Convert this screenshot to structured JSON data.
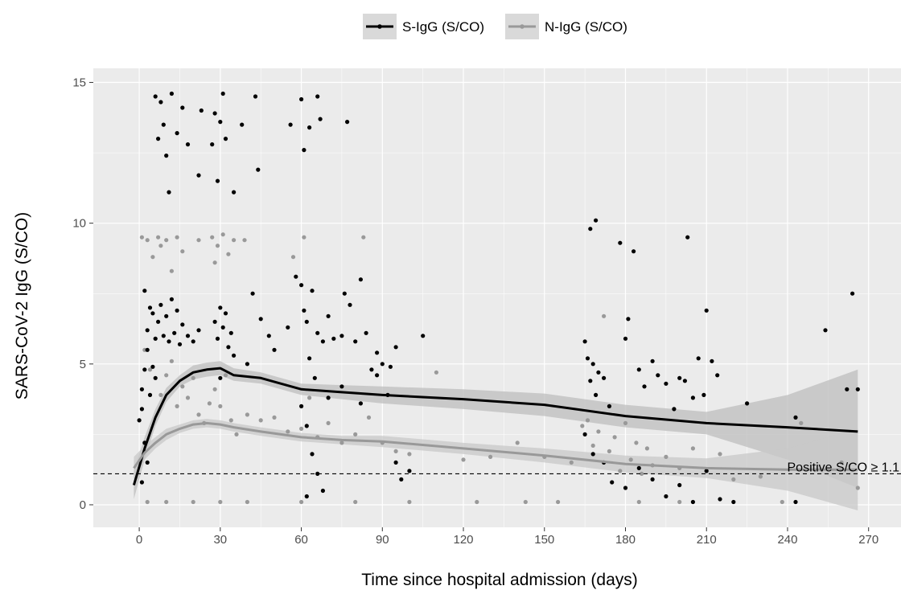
{
  "chart_data": {
    "type": "scatter",
    "title": "",
    "xlabel": "Time since hospital admission (days)",
    "ylabel": "SARS-CoV-2 IgG (S/CO)",
    "xlim": [
      -17,
      282
    ],
    "ylim": [
      -0.8,
      15.5
    ],
    "x_ticks": [
      0,
      30,
      60,
      90,
      120,
      150,
      180,
      210,
      240,
      270
    ],
    "y_ticks": [
      0,
      5,
      10,
      15
    ],
    "grid": true,
    "legend_position": "top",
    "series": [
      {
        "name": "S-IgG (S/CO)",
        "color": "#000000",
        "band_color": "#bdbdbd",
        "smooth": {
          "x": [
            -2,
            2,
            6,
            10,
            15,
            20,
            25,
            30,
            35,
            45,
            60,
            75,
            90,
            120,
            150,
            180,
            210,
            240,
            266
          ],
          "y": [
            0.7,
            2.0,
            3.1,
            3.9,
            4.4,
            4.7,
            4.8,
            4.85,
            4.6,
            4.5,
            4.1,
            4.0,
            3.9,
            3.75,
            3.55,
            3.15,
            2.9,
            2.75,
            2.6
          ],
          "lower": [
            0.2,
            1.6,
            2.8,
            3.65,
            4.2,
            4.45,
            4.55,
            4.6,
            4.4,
            4.3,
            3.9,
            3.75,
            3.6,
            3.4,
            3.15,
            2.75,
            2.5,
            1.6,
            0.6
          ],
          "upper": [
            1.2,
            2.4,
            3.4,
            4.15,
            4.6,
            4.95,
            5.05,
            5.1,
            4.85,
            4.7,
            4.3,
            4.25,
            4.2,
            4.1,
            3.95,
            3.55,
            3.3,
            3.9,
            4.8
          ]
        },
        "points": [
          [
            3,
            6.2
          ],
          [
            4,
            7.0
          ],
          [
            5,
            6.8
          ],
          [
            6,
            5.9
          ],
          [
            7,
            6.5
          ],
          [
            8,
            7.1
          ],
          [
            9,
            6.0
          ],
          [
            10,
            6.7
          ],
          [
            11,
            5.8
          ],
          [
            12,
            7.3
          ],
          [
            13,
            6.1
          ],
          [
            14,
            6.9
          ],
          [
            15,
            5.7
          ],
          [
            16,
            6.4
          ],
          [
            18,
            6.0
          ],
          [
            20,
            5.8
          ],
          [
            22,
            6.2
          ],
          [
            2,
            7.6
          ],
          [
            3,
            5.5
          ],
          [
            5,
            4.9
          ],
          [
            1,
            4.1
          ],
          [
            2,
            4.8
          ],
          [
            4,
            3.9
          ],
          [
            6,
            4.5
          ],
          [
            0,
            3.0
          ],
          [
            1,
            3.4
          ],
          [
            2,
            2.2
          ],
          [
            3,
            1.5
          ],
          [
            1,
            0.8
          ],
          [
            6,
            14.5
          ],
          [
            7,
            13.0
          ],
          [
            8,
            14.3
          ],
          [
            9,
            13.5
          ],
          [
            10,
            12.4
          ],
          [
            11,
            11.1
          ],
          [
            12,
            14.6
          ],
          [
            14,
            13.2
          ],
          [
            16,
            14.1
          ],
          [
            18,
            12.8
          ],
          [
            22,
            11.7
          ],
          [
            23,
            14.0
          ],
          [
            27,
            12.8
          ],
          [
            28,
            13.9
          ],
          [
            29,
            11.5
          ],
          [
            30,
            13.6
          ],
          [
            31,
            14.6
          ],
          [
            32,
            13.0
          ],
          [
            35,
            11.1
          ],
          [
            38,
            13.5
          ],
          [
            43,
            14.5
          ],
          [
            44,
            11.9
          ],
          [
            56,
            13.5
          ],
          [
            60,
            14.4
          ],
          [
            61,
            12.6
          ],
          [
            63,
            13.4
          ],
          [
            66,
            14.5
          ],
          [
            67,
            13.7
          ],
          [
            77,
            13.6
          ],
          [
            28,
            6.5
          ],
          [
            29,
            5.9
          ],
          [
            30,
            7.0
          ],
          [
            31,
            6.3
          ],
          [
            32,
            6.8
          ],
          [
            33,
            5.6
          ],
          [
            34,
            6.1
          ],
          [
            30,
            4.5
          ],
          [
            35,
            5.3
          ],
          [
            40,
            5.0
          ],
          [
            42,
            7.5
          ],
          [
            45,
            6.6
          ],
          [
            48,
            6.0
          ],
          [
            50,
            5.5
          ],
          [
            55,
            6.3
          ],
          [
            58,
            8.1
          ],
          [
            60,
            7.8
          ],
          [
            61,
            6.9
          ],
          [
            62,
            6.5
          ],
          [
            63,
            5.2
          ],
          [
            64,
            7.6
          ],
          [
            65,
            4.5
          ],
          [
            66,
            6.1
          ],
          [
            68,
            5.8
          ],
          [
            70,
            6.7
          ],
          [
            72,
            5.9
          ],
          [
            75,
            6.0
          ],
          [
            76,
            7.5
          ],
          [
            78,
            7.1
          ],
          [
            80,
            5.8
          ],
          [
            82,
            8.0
          ],
          [
            84,
            6.1
          ],
          [
            86,
            4.8
          ],
          [
            88,
            5.4
          ],
          [
            90,
            5.0
          ],
          [
            93,
            4.9
          ],
          [
            95,
            5.6
          ],
          [
            105,
            6.0
          ],
          [
            60,
            3.5
          ],
          [
            62,
            2.8
          ],
          [
            64,
            1.8
          ],
          [
            66,
            1.1
          ],
          [
            68,
            0.5
          ],
          [
            62,
            0.3
          ],
          [
            70,
            3.8
          ],
          [
            75,
            4.2
          ],
          [
            82,
            3.6
          ],
          [
            88,
            4.6
          ],
          [
            92,
            3.9
          ],
          [
            95,
            1.5
          ],
          [
            97,
            0.9
          ],
          [
            100,
            1.2
          ],
          [
            165,
            5.8
          ],
          [
            166,
            5.2
          ],
          [
            167,
            4.4
          ],
          [
            168,
            5.0
          ],
          [
            169,
            3.9
          ],
          [
            170,
            4.7
          ],
          [
            167,
            9.8
          ],
          [
            169,
            10.1
          ],
          [
            172,
            4.5
          ],
          [
            174,
            3.5
          ],
          [
            178,
            9.3
          ],
          [
            180,
            5.9
          ],
          [
            181,
            6.6
          ],
          [
            183,
            9.0
          ],
          [
            185,
            4.8
          ],
          [
            187,
            4.2
          ],
          [
            190,
            5.1
          ],
          [
            192,
            4.6
          ],
          [
            195,
            4.3
          ],
          [
            198,
            3.4
          ],
          [
            200,
            4.5
          ],
          [
            202,
            4.4
          ],
          [
            203,
            9.5
          ],
          [
            205,
            3.8
          ],
          [
            207,
            5.2
          ],
          [
            209,
            3.9
          ],
          [
            210,
            6.9
          ],
          [
            212,
            5.1
          ],
          [
            214,
            4.6
          ],
          [
            165,
            2.5
          ],
          [
            168,
            1.8
          ],
          [
            172,
            1.5
          ],
          [
            175,
            0.8
          ],
          [
            180,
            0.6
          ],
          [
            185,
            1.3
          ],
          [
            190,
            0.9
          ],
          [
            195,
            0.3
          ],
          [
            200,
            0.7
          ],
          [
            205,
            0.1
          ],
          [
            210,
            1.2
          ],
          [
            215,
            0.2
          ],
          [
            220,
            0.1
          ],
          [
            225,
            3.6
          ],
          [
            243,
            3.1
          ],
          [
            243,
            0.1
          ],
          [
            254,
            6.2
          ],
          [
            262,
            4.1
          ],
          [
            264,
            7.5
          ],
          [
            266,
            4.1
          ]
        ]
      },
      {
        "name": "N-IgG (S/CO)",
        "color": "#999999",
        "band_color": "#c8c8c8",
        "smooth": {
          "x": [
            -2,
            2,
            6,
            10,
            15,
            20,
            25,
            30,
            35,
            45,
            60,
            75,
            90,
            120,
            150,
            180,
            210,
            240,
            266
          ],
          "y": [
            1.3,
            1.85,
            2.2,
            2.5,
            2.7,
            2.85,
            2.9,
            2.85,
            2.75,
            2.6,
            2.4,
            2.3,
            2.25,
            2.0,
            1.75,
            1.45,
            1.3,
            1.25,
            1.25
          ],
          "lower": [
            0.9,
            1.6,
            2.0,
            2.3,
            2.55,
            2.7,
            2.75,
            2.7,
            2.6,
            2.45,
            2.25,
            2.15,
            2.05,
            1.8,
            1.5,
            1.15,
            0.95,
            0.5,
            -0.2
          ],
          "upper": [
            1.7,
            2.1,
            2.4,
            2.7,
            2.85,
            3.0,
            3.05,
            3.0,
            2.9,
            2.75,
            2.55,
            2.45,
            2.45,
            2.2,
            2.0,
            1.75,
            1.65,
            2.0,
            2.7
          ]
        },
        "points": [
          [
            1,
            9.5
          ],
          [
            3,
            9.4
          ],
          [
            5,
            8.8
          ],
          [
            7,
            9.5
          ],
          [
            8,
            9.2
          ],
          [
            10,
            9.4
          ],
          [
            12,
            8.3
          ],
          [
            14,
            9.5
          ],
          [
            16,
            9.0
          ],
          [
            22,
            9.4
          ],
          [
            27,
            9.5
          ],
          [
            28,
            8.6
          ],
          [
            29,
            9.2
          ],
          [
            31,
            9.6
          ],
          [
            33,
            8.9
          ],
          [
            35,
            9.4
          ],
          [
            39,
            9.4
          ],
          [
            61,
            9.5
          ],
          [
            57,
            8.8
          ],
          [
            83,
            9.5
          ],
          [
            2,
            5.5
          ],
          [
            4,
            4.8
          ],
          [
            6,
            5.9
          ],
          [
            8,
            3.9
          ],
          [
            10,
            4.6
          ],
          [
            12,
            5.1
          ],
          [
            14,
            3.5
          ],
          [
            16,
            4.2
          ],
          [
            18,
            3.8
          ],
          [
            20,
            4.5
          ],
          [
            22,
            3.2
          ],
          [
            24,
            2.9
          ],
          [
            26,
            3.6
          ],
          [
            28,
            4.1
          ],
          [
            30,
            3.5
          ],
          [
            32,
            4.6
          ],
          [
            34,
            3.0
          ],
          [
            36,
            2.5
          ],
          [
            40,
            3.2
          ],
          [
            45,
            3.0
          ],
          [
            50,
            3.1
          ],
          [
            55,
            2.6
          ],
          [
            60,
            2.7
          ],
          [
            63,
            3.8
          ],
          [
            66,
            2.4
          ],
          [
            70,
            2.9
          ],
          [
            75,
            2.2
          ],
          [
            80,
            2.5
          ],
          [
            85,
            3.1
          ],
          [
            90,
            2.2
          ],
          [
            95,
            1.9
          ],
          [
            100,
            1.8
          ],
          [
            110,
            4.7
          ],
          [
            120,
            1.6
          ],
          [
            130,
            1.7
          ],
          [
            140,
            2.2
          ],
          [
            150,
            1.7
          ],
          [
            160,
            1.5
          ],
          [
            164,
            2.8
          ],
          [
            166,
            3.0
          ],
          [
            168,
            2.1
          ],
          [
            170,
            2.6
          ],
          [
            172,
            6.7
          ],
          [
            174,
            1.9
          ],
          [
            176,
            2.4
          ],
          [
            178,
            1.2
          ],
          [
            180,
            2.9
          ],
          [
            182,
            1.6
          ],
          [
            184,
            2.2
          ],
          [
            186,
            1.1
          ],
          [
            188,
            2.0
          ],
          [
            190,
            1.4
          ],
          [
            195,
            1.7
          ],
          [
            200,
            1.3
          ],
          [
            205,
            2.0
          ],
          [
            210,
            1.2
          ],
          [
            215,
            1.8
          ],
          [
            220,
            0.9
          ],
          [
            230,
            1.0
          ],
          [
            245,
            2.9
          ],
          [
            260,
            1.5
          ],
          [
            266,
            0.6
          ],
          [
            3,
            0.1
          ],
          [
            10,
            0.1
          ],
          [
            20,
            0.1
          ],
          [
            30,
            0.1
          ],
          [
            40,
            0.1
          ],
          [
            60,
            0.1
          ],
          [
            80,
            0.1
          ],
          [
            100,
            0.1
          ],
          [
            125,
            0.1
          ],
          [
            143,
            0.1
          ],
          [
            155,
            0.1
          ],
          [
            185,
            0.1
          ],
          [
            200,
            0.1
          ],
          [
            238,
            0.1
          ]
        ]
      }
    ],
    "reference_line": {
      "y": 1.1,
      "style": "dashed",
      "label": "Positive S/CO ≥ 1.1"
    }
  }
}
